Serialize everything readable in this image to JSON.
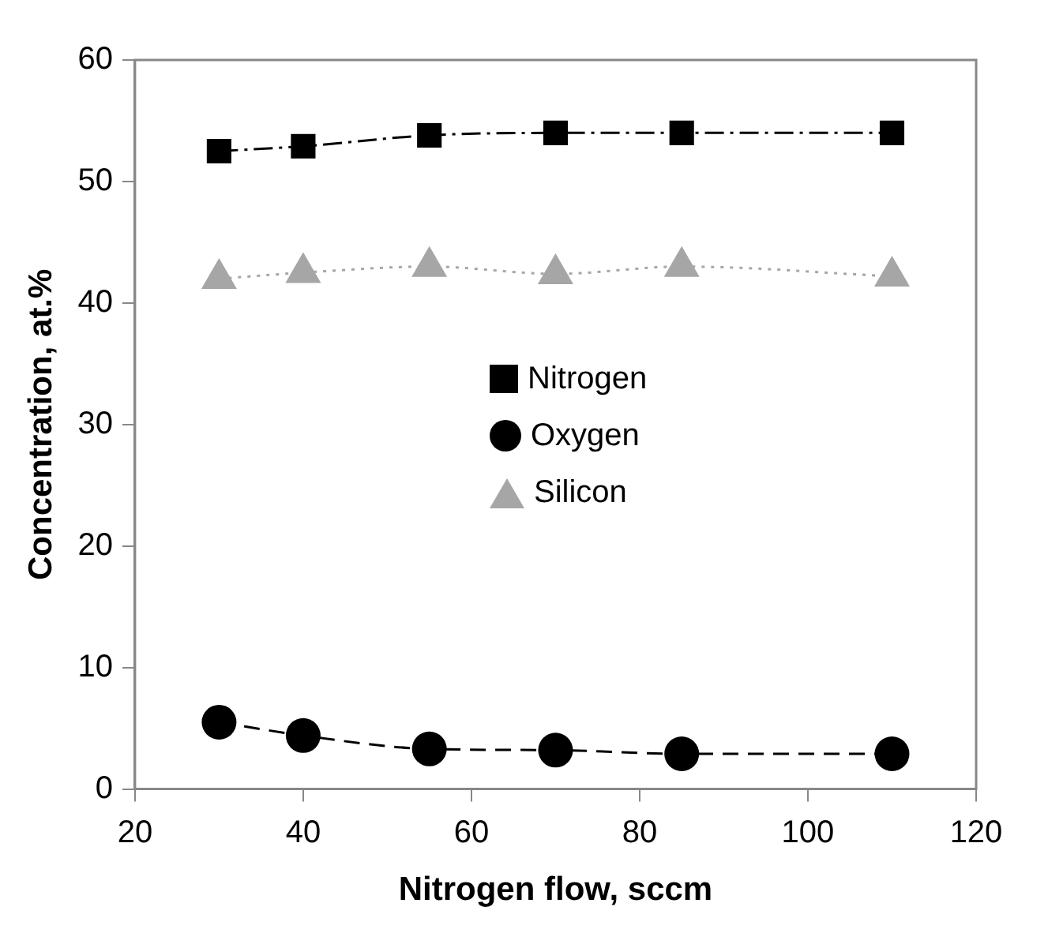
{
  "chart_data": {
    "type": "line",
    "xlabel": "Nitrogen flow, sccm",
    "ylabel": "Concentration, at.%",
    "x": [
      30,
      40,
      55,
      70,
      85,
      110
    ],
    "series": [
      {
        "name": "Nitrogen",
        "color": "#000000",
        "marker": "square",
        "line_style": "dashdot",
        "values": [
          52.5,
          52.9,
          53.8,
          54.0,
          54.0,
          54.0
        ]
      },
      {
        "name": "Oxygen",
        "color": "#000000",
        "marker": "circle",
        "line_style": "dashed",
        "values": [
          5.5,
          4.4,
          3.3,
          3.2,
          2.9,
          2.9
        ]
      },
      {
        "name": "Silicon",
        "color": "#a6a6a6",
        "marker": "triangle",
        "line_style": "dotted",
        "values": [
          42.0,
          42.5,
          43.0,
          42.4,
          43.0,
          42.2
        ]
      }
    ],
    "xlim": [
      20,
      120
    ],
    "xticks": [
      20,
      40,
      60,
      80,
      100,
      120
    ],
    "ylim": [
      0,
      60
    ],
    "yticks": [
      0,
      10,
      20,
      30,
      40,
      50,
      60
    ],
    "grid": false,
    "legend": "center"
  }
}
